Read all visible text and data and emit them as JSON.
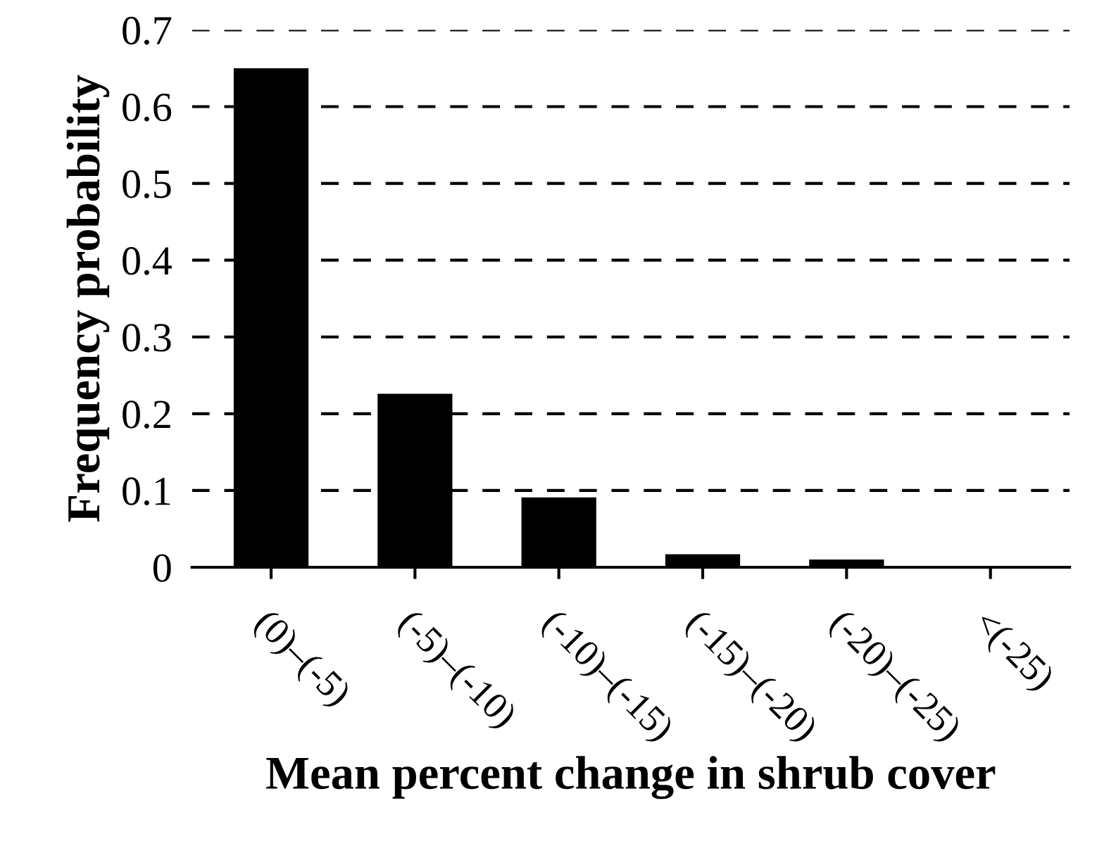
{
  "chart_data": {
    "type": "bar",
    "xlabel": "Mean percent change in shrub cover",
    "ylabel": "Frequency probability",
    "categories": [
      "(0)–(-5)",
      "(-5)–(-10)",
      "(-10)–(-15)",
      "(-15)–(-20)",
      "(-20)–(-25)",
      "<(-25)"
    ],
    "values": [
      0.65,
      0.226,
      0.091,
      0.017,
      0.01,
      0
    ],
    "color": "#000000",
    "ylim": [
      0,
      0.7
    ],
    "yticks": [
      0,
      0.1,
      0.2,
      0.3,
      0.4,
      0.5,
      0.6,
      0.7
    ],
    "grid": "y",
    "line_style": "dashed"
  }
}
